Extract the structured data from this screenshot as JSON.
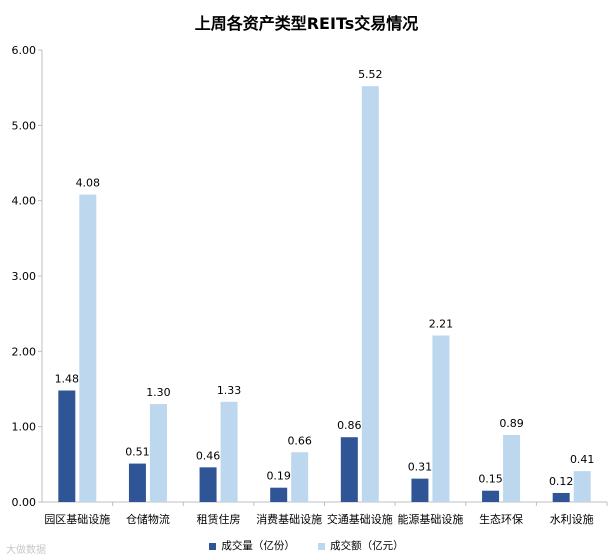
{
  "chart_data": {
    "type": "bar",
    "title": "上周各资产类型REITs交易情况",
    "categories": [
      "园区基础设施",
      "仓储物流",
      "租赁住房",
      "消费基础设施",
      "交通基础设施",
      "能源基础设施",
      "生态环保",
      "水利设施"
    ],
    "series": [
      {
        "name": "成交量（亿份）",
        "color": "#2F5597",
        "values": [
          1.48,
          0.51,
          0.46,
          0.19,
          0.86,
          0.31,
          0.15,
          0.12
        ],
        "labels": [
          "1.48",
          "0.51",
          "0.46",
          "0.19",
          "0.86",
          "0.31",
          "0.15",
          "0.12"
        ]
      },
      {
        "name": "成交额（亿元）",
        "color": "#BDD7EE",
        "values": [
          4.08,
          1.3,
          1.33,
          0.66,
          5.52,
          2.21,
          0.89,
          0.41
        ],
        "labels": [
          "4.08",
          "1.30",
          "1.33",
          "0.66",
          "5.52",
          "2.21",
          "0.89",
          "0.41"
        ]
      }
    ],
    "ylim": [
      0,
      6
    ],
    "yticks": [
      "0.00",
      "1.00",
      "2.00",
      "3.00",
      "4.00",
      "5.00",
      "6.00"
    ],
    "grid": false,
    "legend_position": "bottom"
  },
  "watermark": "大做数据"
}
